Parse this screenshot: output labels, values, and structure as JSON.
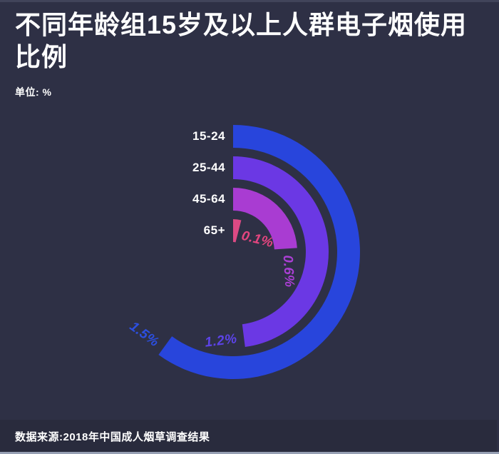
{
  "page": {
    "title": "不同年龄组15岁及以上人群电子烟使用比例",
    "title_lines": [
      "不同年龄组15岁及以上人群电子烟使用",
      "比例"
    ],
    "subtitle": "单位: %",
    "source": "数据来源:2018年中国成人烟草调查结果"
  },
  "colors": {
    "background": "#2E3045",
    "ring_colors": [
      "#2845DC",
      "#6B38E4",
      "#A93CD2",
      "#DC4A84"
    ],
    "value_label_colors": [
      "#2C4FE0",
      "#5C43E8",
      "#AA3FD4",
      "#E3457F"
    ],
    "category_label_color": "#FFFFFF"
  },
  "chart_data": {
    "type": "bar",
    "variant": "radial-bar",
    "title": "不同年龄组15岁及以上人群电子烟使用比例",
    "unit": "%",
    "categories": [
      "15-24",
      "25-44",
      "45-64",
      "65+"
    ],
    "values": [
      1.5,
      1.2,
      0.6,
      0.1
    ],
    "value_labels": [
      "1.5%",
      "1.2%",
      "0.6%",
      "0.1%"
    ],
    "scale_deg_per_unit": 144,
    "start_angle_deg": 0,
    "direction": "clockwise",
    "source": "数据来源:2018年中国成人烟草调查结果"
  }
}
